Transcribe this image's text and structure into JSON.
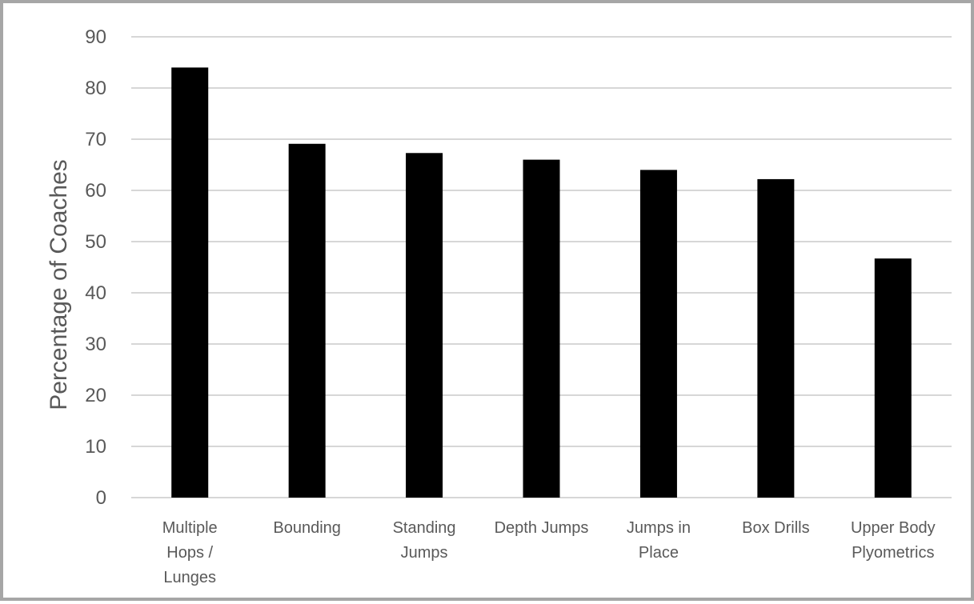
{
  "chart_data": {
    "type": "bar",
    "title": "",
    "xlabel": "",
    "ylabel": "Percentage of Coaches",
    "ylim": [
      0,
      90
    ],
    "yticks": [
      0,
      10,
      20,
      30,
      40,
      50,
      60,
      70,
      80,
      90
    ],
    "grid": true,
    "legend": "none",
    "categories": [
      [
        "Multiple",
        "Hops /",
        "Lunges"
      ],
      [
        "Bounding"
      ],
      [
        "Standing",
        "Jumps"
      ],
      [
        "Depth Jumps"
      ],
      [
        "Jumps in",
        "Place"
      ],
      [
        "Box Drills"
      ],
      [
        "Upper Body",
        "Plyometrics"
      ]
    ],
    "values": [
      84,
      69.1,
      67.3,
      66,
      64,
      62.2,
      46.7
    ],
    "colors": {
      "bar": "#000000",
      "grid": "#bfbfbf",
      "text": "#595959",
      "frame": "#a6a6a6"
    }
  }
}
